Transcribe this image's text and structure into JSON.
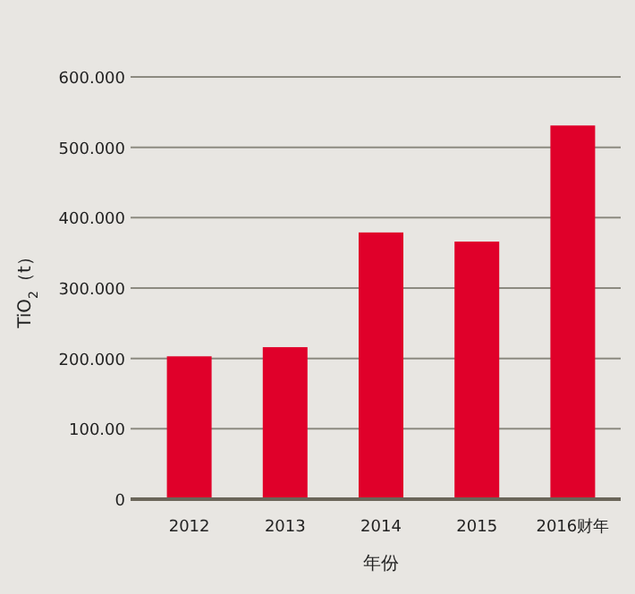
{
  "chart_data": {
    "type": "bar",
    "xlabel": "年份",
    "ylabel": "TiO$_{2}$（t）",
    "categories": [
      "2012",
      "2013",
      "2014",
      "2015",
      "2016财年"
    ],
    "values": [
      203,
      216,
      379,
      366,
      531
    ],
    "color": "#e0002a",
    "ylim": [
      0,
      600
    ],
    "yticks": [
      0,
      {
        "value": 100,
        "label": "100.00"
      },
      {
        "value": 200,
        "label": "200.000"
      },
      {
        "value": 300,
        "label": "300.000"
      },
      {
        "value": 400,
        "label": "400.000"
      },
      {
        "value": 500,
        "label": "500.000"
      },
      {
        "value": 600,
        "label": "600.000"
      }
    ],
    "grid": "y"
  }
}
